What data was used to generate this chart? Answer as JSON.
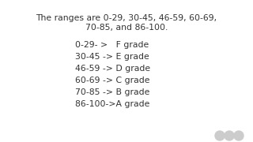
{
  "background_color": "#ffffff",
  "header_line1": "The ranges are 0-29, 30-45, 46-59, 60-69,",
  "header_line2": "70-85, and 86-100.",
  "grade_lines": [
    "0-29- >   F grade",
    "30-45 -> E grade",
    "46-59 -> D grade",
    "60-69 -> C grade",
    "70-85 -> B grade",
    "86-100->A grade"
  ],
  "header_fontsize": 7.8,
  "grade_fontsize": 7.8,
  "text_color": "#333333",
  "fig_width": 3.2,
  "fig_height": 1.8,
  "dpi": 100
}
